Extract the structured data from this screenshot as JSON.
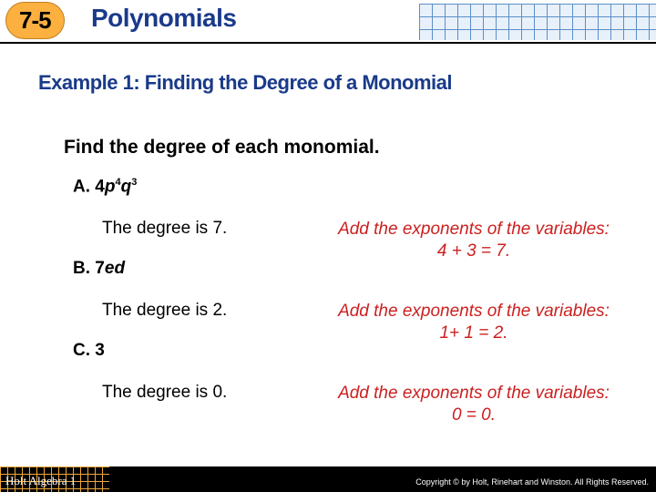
{
  "header": {
    "lesson_number": "7-5",
    "chapter_title": "Polynomials"
  },
  "example": {
    "title": "Example 1: Finding the Degree of a Monomial",
    "instruction": "Find the degree of each monomial."
  },
  "items": {
    "A": {
      "label": "A.",
      "expr_prefix": "4",
      "var1": "p",
      "exp1": "4",
      "var2": "q",
      "exp2": "3",
      "answer": "The degree is 7.",
      "hint": "Add the exponents of the variables: 4 + 3 = 7."
    },
    "B": {
      "label": "B.",
      "expr_prefix": "7",
      "var1": "e",
      "var2": "d",
      "answer": "The degree is 2.",
      "hint": "Add the exponents of the variables: 1+ 1 = 2."
    },
    "C": {
      "label": "C.",
      "expr": "3",
      "answer": "The degree is 0.",
      "hint": "Add the exponents of the variables: 0 = 0."
    }
  },
  "footer": {
    "book": "Holt Algebra 1",
    "copyright": "Copyright © by Holt, Rinehart and Winston. All Rights Reserved."
  },
  "colors": {
    "title_blue": "#1a3a8a",
    "hint_red": "#cc2020",
    "badge_orange": "#fbb040",
    "grid_blue": "#5b8fc7"
  }
}
